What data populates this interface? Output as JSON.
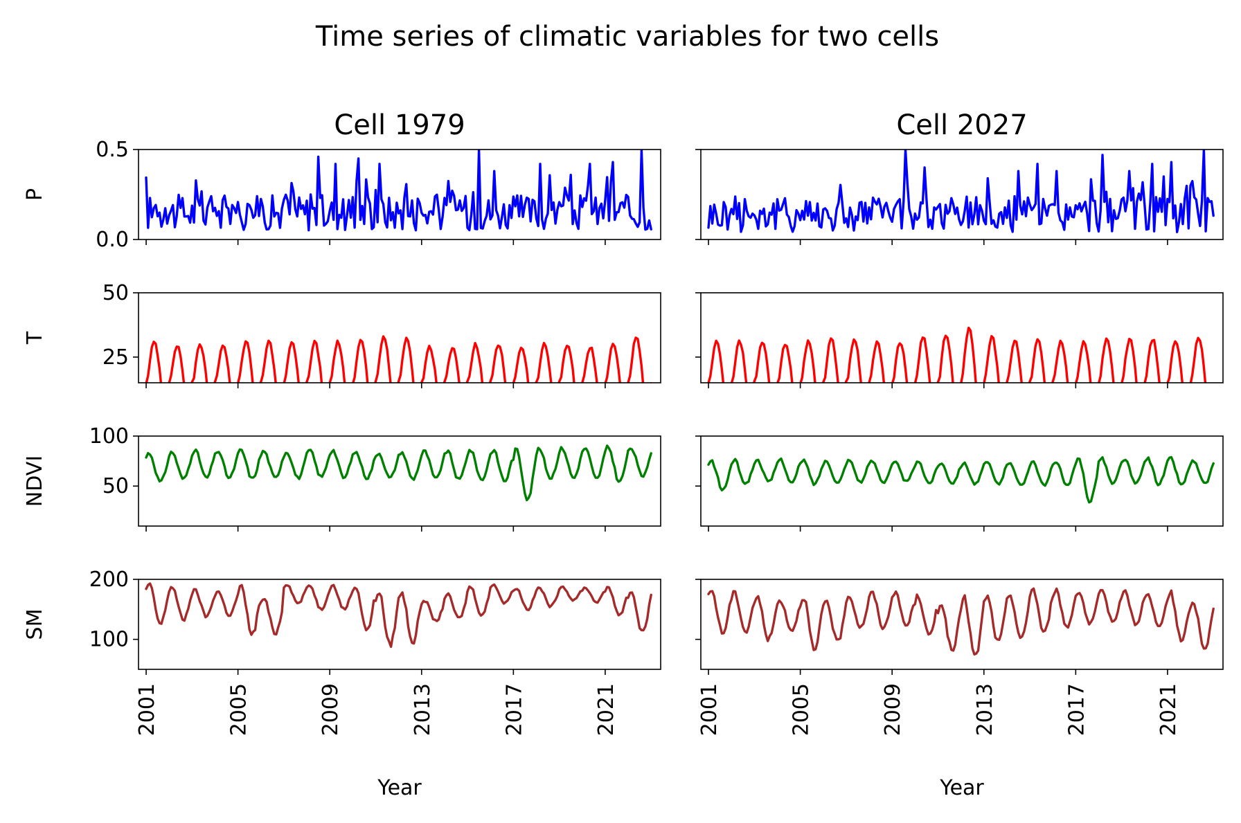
{
  "figure": {
    "title": "Time series of climatic variables for two cells"
  },
  "chart_data": [
    {
      "type": "line",
      "column_title": "Cell 1979",
      "xlabel": "Year",
      "x_range": [
        "2000-09",
        "2023-06"
      ],
      "x_ticks": [
        "2001",
        "2005",
        "2009",
        "2013",
        "2017",
        "2021"
      ],
      "grid": false,
      "panels": [
        {
          "ylabel": "P",
          "ylim": [
            0,
            0.5
          ],
          "yticks": [
            "0.0",
            "0.5"
          ],
          "color": "#0000ff",
          "x": {
            "start": "2001-01",
            "frequency": "monthly",
            "end": "2023-01"
          },
          "profile": {
            "kind": "precip",
            "base": 0.14,
            "amp": 0.09,
            "peaks": [
              [
                2008.5,
                0.46
              ],
              [
                2009.25,
                0.42
              ],
              [
                2010.25,
                0.45
              ],
              [
                2011.2,
                0.42
              ],
              [
                2015.5,
                0.5
              ],
              [
                2016.2,
                0.38
              ],
              [
                2018.2,
                0.42
              ],
              [
                2020.3,
                0.42
              ],
              [
                2021.3,
                0.43
              ],
              [
                2022.6,
                0.5
              ]
            ]
          }
        },
        {
          "ylabel": "T",
          "ylim": [
            15,
            50
          ],
          "yticks": [
            "25",
            "50"
          ],
          "color": "#ff0000",
          "x": {
            "start": "2001-01",
            "frequency": "monthly",
            "end": "2023-01"
          },
          "profile": {
            "kind": "temperature",
            "annual_peaks": [
              31,
              29.5,
              30,
              30,
              31,
              31,
              31,
              31,
              31,
              32,
              33,
              32.5,
              29,
              29,
              30,
              30,
              29,
              30,
              30,
              29,
              30,
              32.5
            ],
            "annual_min": 15
          }
        },
        {
          "ylabel": "NDVI",
          "ylim": [
            10,
            100
          ],
          "yticks": [
            "50",
            "100"
          ],
          "color": "#008000",
          "x": {
            "start": "2001-01",
            "frequency": "monthly",
            "end": "2023-01"
          },
          "profile": {
            "kind": "ndvi",
            "annual_peaks": [
              83,
              84,
              86,
              85,
              86,
              85,
              84,
              86,
              86,
              84,
              83,
              84,
              85,
              85,
              86,
              86,
              86,
              87,
              88,
              88,
              89,
              88
            ],
            "annual_troughs": [
              54,
              57,
              58,
              58,
              57,
              58,
              58,
              59,
              58,
              58,
              58,
              57,
              57,
              56,
              56,
              55,
              38,
              58,
              58,
              57,
              54,
              60
            ]
          }
        },
        {
          "ylabel": "SM",
          "ylim": [
            50,
            200
          ],
          "yticks": [
            "100",
            "200"
          ],
          "color": "#a52a2a",
          "x": {
            "start": "2001-01",
            "frequency": "monthly",
            "end": "2023-01"
          },
          "profile": {
            "kind": "soil_moisture",
            "annual_peaks": [
              192,
              188,
              182,
              180,
              188,
              168,
              192,
              190,
              190,
              188,
              180,
              178,
              165,
              175,
              188,
              192,
              185,
              186,
              188,
              186,
              188,
              180
            ],
            "annual_troughs": [
              125,
              132,
              138,
              140,
              108,
              110,
              160,
              150,
              150,
              115,
              90,
              95,
              130,
              135,
              140,
              160,
              150,
              155,
              165,
              162,
              140,
              112
            ]
          }
        }
      ]
    },
    {
      "type": "line",
      "column_title": "Cell 2027",
      "xlabel": "Year",
      "x_range": [
        "2000-09",
        "2023-06"
      ],
      "x_ticks": [
        "2001",
        "2005",
        "2009",
        "2013",
        "2017",
        "2021"
      ],
      "grid": false,
      "panels": [
        {
          "ylabel": "P",
          "ylim": [
            0,
            0.5
          ],
          "yticks": [
            "0.0",
            "0.5"
          ],
          "color": "#0000ff",
          "x": {
            "start": "2001-01",
            "frequency": "monthly",
            "end": "2023-01"
          },
          "profile": {
            "kind": "precip",
            "base": 0.13,
            "amp": 0.09,
            "peaks": [
              [
                2009.6,
                0.5
              ],
              [
                2010.4,
                0.4
              ],
              [
                2013.2,
                0.34
              ],
              [
                2014.5,
                0.38
              ],
              [
                2015.3,
                0.42
              ],
              [
                2016.2,
                0.38
              ],
              [
                2018.2,
                0.47
              ],
              [
                2019.3,
                0.38
              ],
              [
                2020.3,
                0.42
              ],
              [
                2021.2,
                0.43
              ],
              [
                2022.6,
                0.5
              ]
            ]
          }
        },
        {
          "ylabel": "T",
          "ylim": [
            15,
            50
          ],
          "yticks": [
            "25",
            "50"
          ],
          "color": "#ff0000",
          "x": {
            "start": "2001-01",
            "frequency": "monthly",
            "end": "2023-01"
          },
          "profile": {
            "kind": "temperature",
            "annual_peaks": [
              31,
              31,
              31,
              30,
              31,
              32,
              32,
              31,
              31,
              33,
              34,
              36,
              33,
              32,
              32,
              31,
              31,
              32,
              32,
              32,
              31,
              33
            ],
            "annual_min": 15
          }
        },
        {
          "ylabel": "NDVI",
          "ylim": [
            10,
            100
          ],
          "yticks": [
            "50",
            "100"
          ],
          "color": "#008000",
          "x": {
            "start": "2001-01",
            "frequency": "monthly",
            "end": "2023-01"
          },
          "profile": {
            "kind": "ndvi",
            "annual_peaks": [
              75,
              76,
              76,
              77,
              76,
              75,
              76,
              75,
              74,
              74,
              73,
              73,
              74,
              74,
              75,
              75,
              77,
              78,
              77,
              78,
              78,
              75
            ],
            "annual_troughs": [
              46,
              52,
              54,
              53,
              52,
              53,
              54,
              54,
              54,
              53,
              53,
              52,
              52,
              50,
              50,
              50,
              35,
              52,
              52,
              52,
              51,
              52
            ]
          }
        },
        {
          "ylabel": "SM",
          "ylim": [
            50,
            200
          ],
          "yticks": [
            "100",
            "200"
          ],
          "color": "#a52a2a",
          "x": {
            "start": "2001-01",
            "frequency": "monthly",
            "end": "2023-01"
          },
          "profile": {
            "kind": "soil_moisture",
            "annual_peaks": [
              182,
              178,
              170,
              165,
              172,
              165,
              172,
              178,
              178,
              172,
              160,
              170,
              172,
              175,
              185,
              182,
              180,
              180,
              180,
              175,
              178,
              160
            ],
            "annual_troughs": [
              110,
              112,
              100,
              115,
              80,
              95,
              120,
              118,
              122,
              105,
              80,
              70,
              95,
              100,
              110,
              120,
              125,
              130,
              125,
              120,
              95,
              85
            ]
          }
        }
      ]
    }
  ]
}
